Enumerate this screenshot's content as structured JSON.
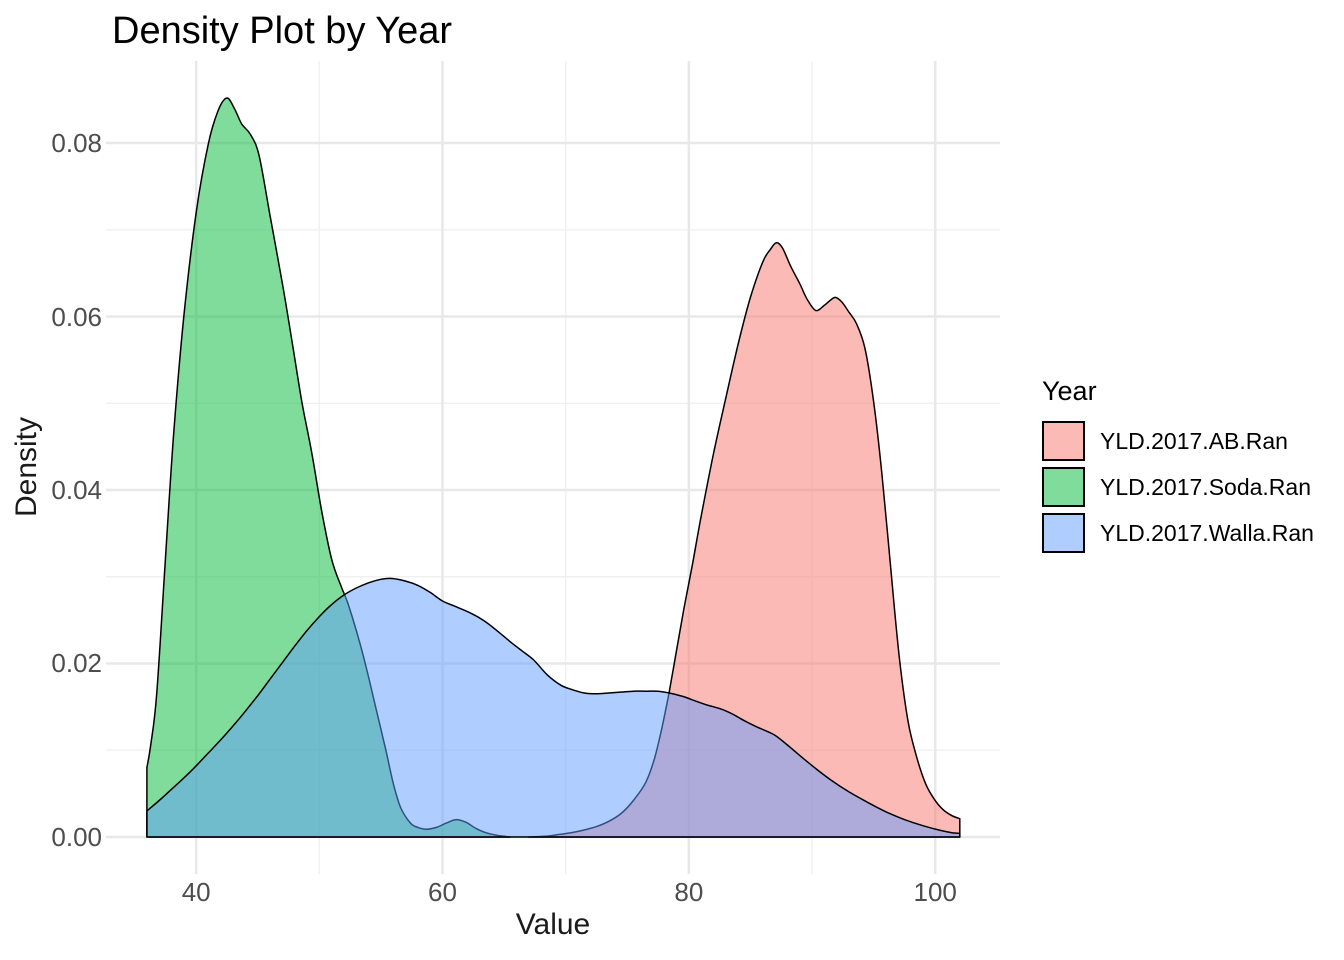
{
  "title": "Density Plot by Year",
  "colors": {
    "background": "#FFFFFF",
    "grid_major": "#E8E8E8",
    "grid_minor": "#F0F0F0",
    "tick_text": "#4D4D4D",
    "outline": "#000000"
  },
  "chart_data": {
    "type": "area",
    "subtype": "density",
    "title": "Density Plot by Year",
    "xlabel": "Value",
    "ylabel": "Density",
    "grid": "on",
    "legend_title": "Year",
    "legend_position": "right",
    "xlim": [
      32.7,
      105.3
    ],
    "ylim": [
      0,
      0.0895
    ],
    "x_ticks": [
      {
        "value": 40,
        "label": "40"
      },
      {
        "value": 60,
        "label": "60"
      },
      {
        "value": 80,
        "label": "80"
      },
      {
        "value": 100,
        "label": "100"
      }
    ],
    "x_minor_ticks": [
      50,
      70,
      90
    ],
    "y_ticks": [
      {
        "value": 0.0,
        "label": "0.00"
      },
      {
        "value": 0.02,
        "label": "0.02"
      },
      {
        "value": 0.04,
        "label": "0.04"
      },
      {
        "value": 0.06,
        "label": "0.06"
      },
      {
        "value": 0.08,
        "label": "0.08"
      }
    ],
    "y_minor_ticks": [
      0.01,
      0.03,
      0.05,
      0.07
    ],
    "fill_alpha": 0.5,
    "series": [
      {
        "name": "YLD.2017.AB.Ran",
        "color": "#F8766D",
        "peak": {
          "x": 87.1,
          "y": 0.0685
        },
        "points": [
          [
            67.0,
            0.0
          ],
          [
            68.5,
            0.0001
          ],
          [
            69.5,
            0.0003
          ],
          [
            70.5,
            0.0005
          ],
          [
            71.5,
            0.0008
          ],
          [
            72.5,
            0.0012
          ],
          [
            73.5,
            0.0018
          ],
          [
            74.5,
            0.0027
          ],
          [
            75.5,
            0.0042
          ],
          [
            76.5,
            0.0063
          ],
          [
            77.2,
            0.009
          ],
          [
            77.8,
            0.0125
          ],
          [
            78.4,
            0.0167
          ],
          [
            79.0,
            0.0215
          ],
          [
            79.6,
            0.0263
          ],
          [
            80.3,
            0.0315
          ],
          [
            81.0,
            0.037
          ],
          [
            82.0,
            0.0442
          ],
          [
            83.0,
            0.0506
          ],
          [
            84.0,
            0.0568
          ],
          [
            85.0,
            0.0622
          ],
          [
            86.0,
            0.0663
          ],
          [
            86.6,
            0.0677
          ],
          [
            87.1,
            0.0685
          ],
          [
            87.6,
            0.0679
          ],
          [
            88.3,
            0.0657
          ],
          [
            89.0,
            0.0638
          ],
          [
            89.6,
            0.062
          ],
          [
            90.3,
            0.0607
          ],
          [
            91.0,
            0.0613
          ],
          [
            91.5,
            0.0619
          ],
          [
            91.9,
            0.0622
          ],
          [
            92.4,
            0.0617
          ],
          [
            93.0,
            0.0605
          ],
          [
            93.6,
            0.0592
          ],
          [
            94.3,
            0.0563
          ],
          [
            95.0,
            0.0502
          ],
          [
            95.7,
            0.0415
          ],
          [
            96.4,
            0.0308
          ],
          [
            97.1,
            0.0205
          ],
          [
            97.8,
            0.0133
          ],
          [
            98.5,
            0.0092
          ],
          [
            99.2,
            0.0062
          ],
          [
            99.9,
            0.0044
          ],
          [
            100.6,
            0.0032
          ],
          [
            101.3,
            0.0025
          ],
          [
            102.0,
            0.0021
          ]
        ]
      },
      {
        "name": "YLD.2017.Soda.Ran",
        "color": "#00BA38",
        "peak": {
          "x": 42.5,
          "y": 0.0852
        },
        "points": [
          [
            36.0,
            0.008
          ],
          [
            36.3,
            0.0105
          ],
          [
            36.8,
            0.0165
          ],
          [
            37.5,
            0.032
          ],
          [
            38.2,
            0.047
          ],
          [
            39.0,
            0.06
          ],
          [
            40.0,
            0.072
          ],
          [
            41.0,
            0.08
          ],
          [
            41.8,
            0.0838
          ],
          [
            42.5,
            0.0852
          ],
          [
            43.1,
            0.084
          ],
          [
            43.7,
            0.0822
          ],
          [
            44.4,
            0.081
          ],
          [
            45.1,
            0.0786
          ],
          [
            46.0,
            0.0716
          ],
          [
            47.0,
            0.0638
          ],
          [
            47.8,
            0.057
          ],
          [
            48.6,
            0.05
          ],
          [
            49.4,
            0.0442
          ],
          [
            50.2,
            0.0375
          ],
          [
            51.0,
            0.032
          ],
          [
            51.8,
            0.0288
          ],
          [
            52.3,
            0.027
          ],
          [
            53.0,
            0.0238
          ],
          [
            53.8,
            0.0196
          ],
          [
            54.6,
            0.0148
          ],
          [
            55.4,
            0.01
          ],
          [
            56.0,
            0.0062
          ],
          [
            56.6,
            0.0034
          ],
          [
            57.4,
            0.0016
          ],
          [
            58.0,
            0.0011
          ],
          [
            58.7,
            0.0009
          ],
          [
            59.5,
            0.0011
          ],
          [
            60.3,
            0.0016
          ],
          [
            61.1,
            0.002
          ],
          [
            61.9,
            0.0017
          ],
          [
            62.7,
            0.001
          ],
          [
            63.5,
            0.0005
          ],
          [
            64.4,
            0.0002
          ],
          [
            65.5,
            0.0
          ]
        ]
      },
      {
        "name": "YLD.2017.Walla.Ran",
        "color": "#619CFF",
        "peak": {
          "x": 55.9,
          "y": 0.0298
        },
        "points": [
          [
            36.0,
            0.003
          ],
          [
            37.0,
            0.0042
          ],
          [
            38.0,
            0.0055
          ],
          [
            39.0,
            0.0068
          ],
          [
            40.0,
            0.0082
          ],
          [
            41.0,
            0.0097
          ],
          [
            42.0,
            0.0112
          ],
          [
            43.0,
            0.0128
          ],
          [
            44.0,
            0.0145
          ],
          [
            45.0,
            0.0163
          ],
          [
            46.0,
            0.0182
          ],
          [
            47.0,
            0.0201
          ],
          [
            48.0,
            0.022
          ],
          [
            49.0,
            0.0238
          ],
          [
            50.0,
            0.0254
          ],
          [
            51.0,
            0.0268
          ],
          [
            52.0,
            0.0279
          ],
          [
            53.0,
            0.0287
          ],
          [
            54.0,
            0.0293
          ],
          [
            55.0,
            0.0297
          ],
          [
            55.9,
            0.0298
          ],
          [
            57.0,
            0.0295
          ],
          [
            58.0,
            0.029
          ],
          [
            59.0,
            0.0282
          ],
          [
            60.0,
            0.0272
          ],
          [
            61.0,
            0.0266
          ],
          [
            62.3,
            0.0258
          ],
          [
            63.4,
            0.0249
          ],
          [
            64.5,
            0.0237
          ],
          [
            65.5,
            0.0225
          ],
          [
            66.5,
            0.0214
          ],
          [
            67.4,
            0.0204
          ],
          [
            68.5,
            0.0187
          ],
          [
            69.6,
            0.0175
          ],
          [
            70.5,
            0.017
          ],
          [
            71.5,
            0.0166
          ],
          [
            72.5,
            0.0165
          ],
          [
            73.5,
            0.0166
          ],
          [
            74.5,
            0.0167
          ],
          [
            75.5,
            0.0168
          ],
          [
            76.5,
            0.0168
          ],
          [
            77.5,
            0.0168
          ],
          [
            78.4,
            0.0166
          ],
          [
            79.5,
            0.0162
          ],
          [
            80.5,
            0.0157
          ],
          [
            81.5,
            0.0152
          ],
          [
            82.5,
            0.0148
          ],
          [
            83.5,
            0.0142
          ],
          [
            84.5,
            0.0134
          ],
          [
            85.5,
            0.0127
          ],
          [
            86.9,
            0.0118
          ],
          [
            88.0,
            0.0106
          ],
          [
            89.0,
            0.0094
          ],
          [
            90.2,
            0.008
          ],
          [
            91.5,
            0.0066
          ],
          [
            93.0,
            0.0052
          ],
          [
            94.5,
            0.004
          ],
          [
            96.0,
            0.0029
          ],
          [
            97.5,
            0.002
          ],
          [
            99.0,
            0.0013
          ],
          [
            100.3,
            0.0008
          ],
          [
            101.3,
            0.0005
          ],
          [
            102.0,
            0.0004
          ]
        ]
      }
    ]
  }
}
